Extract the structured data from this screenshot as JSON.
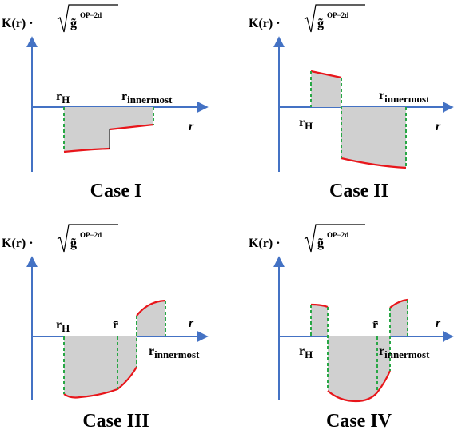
{
  "axis_color": "#4472c4",
  "curve_color": "#e8161b",
  "fill_color": "#d0d0d0",
  "marker_color": "#28a745",
  "panels": [
    {
      "y_label": {
        "main": "K(r) · ",
        "g": "g̃",
        "sup": "OP−2d"
      },
      "x_label": "r",
      "case_label": "Case I",
      "labels": {
        "rH": "r",
        "rH_sub": "H",
        "rin": "r",
        "rin_sub": "innermost"
      }
    },
    {
      "y_label": {
        "main": "K(r) · ",
        "g": "g̃",
        "sup": "OP−2d"
      },
      "x_label": "r",
      "case_label": "Case II",
      "labels": {
        "rH": "r",
        "rH_sub": "H",
        "rin": "r",
        "rin_sub": "innermost"
      }
    },
    {
      "y_label": {
        "main": "K(r) · ",
        "g": "g̃",
        "sup": "OP−2d"
      },
      "x_label": "r",
      "case_label": "Case III",
      "labels": {
        "rH": "r",
        "rH_sub": "H",
        "rbar": "r̄",
        "rin": "r",
        "rin_sub": "innermost"
      }
    },
    {
      "y_label": {
        "main": "K(r) · ",
        "g": "g̃",
        "sup": "OP−2d"
      },
      "x_label": "r",
      "case_label": "Case IV",
      "labels": {
        "rH": "r",
        "rH_sub": "H",
        "rbar": "r̄",
        "rin": "r",
        "rin_sub": "innermost"
      }
    }
  ]
}
